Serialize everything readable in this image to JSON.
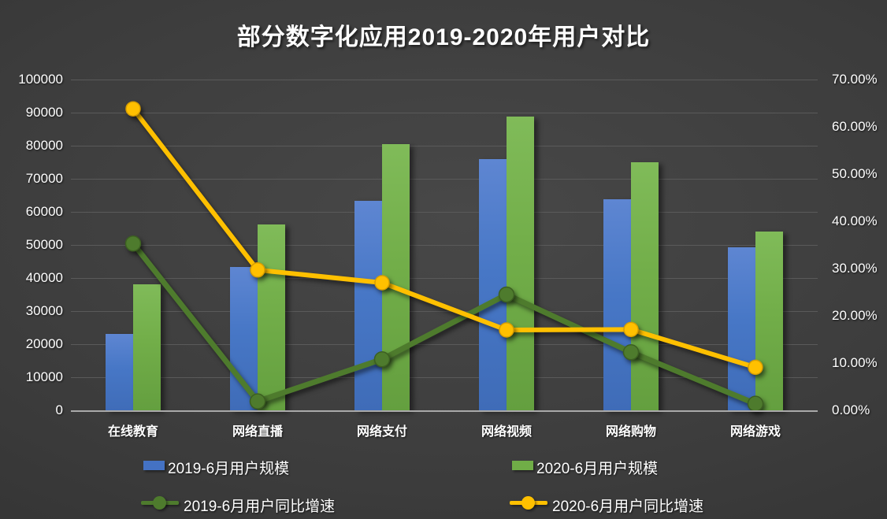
{
  "title": "部分数字化应用2019-2020年用户对比",
  "chart_data": {
    "type": "combo-bar-line",
    "title": "部分数字化应用2019-2020年用户对比",
    "categories": [
      "在线教育",
      "网络直播",
      "网络支付",
      "网络视频",
      "网络购物",
      "网络游戏"
    ],
    "series": [
      {
        "name": "2019-6月用户规模",
        "type": "bar",
        "axis": "left",
        "color": "#4472c4",
        "values": [
          23200,
          43300,
          63300,
          75900,
          63900,
          49300
        ]
      },
      {
        "name": "2020-6月用户规模",
        "type": "bar",
        "axis": "left",
        "color": "#70ad47",
        "values": [
          38100,
          56200,
          80500,
          88800,
          74900,
          54000
        ]
      },
      {
        "name": "2019-6月用户同比增速",
        "type": "line",
        "axis": "right",
        "color": "#4e7b2d",
        "values_percent": [
          35.3,
          1.9,
          10.8,
          24.5,
          12.3,
          1.4
        ]
      },
      {
        "name": "2020-6月用户同比增速",
        "type": "line",
        "axis": "right",
        "color": "#ffc000",
        "values_percent": [
          63.8,
          29.7,
          27.0,
          17.0,
          17.1,
          9.1
        ]
      }
    ],
    "left_axis": {
      "min": 0,
      "max": 100000,
      "step": 10000,
      "tick_labels": [
        "0",
        "10000",
        "20000",
        "30000",
        "40000",
        "50000",
        "60000",
        "70000",
        "80000",
        "90000",
        "100000"
      ]
    },
    "right_axis": {
      "min": 0,
      "max": 70,
      "step": 10,
      "tick_labels": [
        "0.00%",
        "10.00%",
        "20.00%",
        "30.00%",
        "40.00%",
        "50.00%",
        "60.00%",
        "70.00%"
      ]
    },
    "gridlines": "horizontal",
    "legend_position": "bottom-two-rows"
  }
}
